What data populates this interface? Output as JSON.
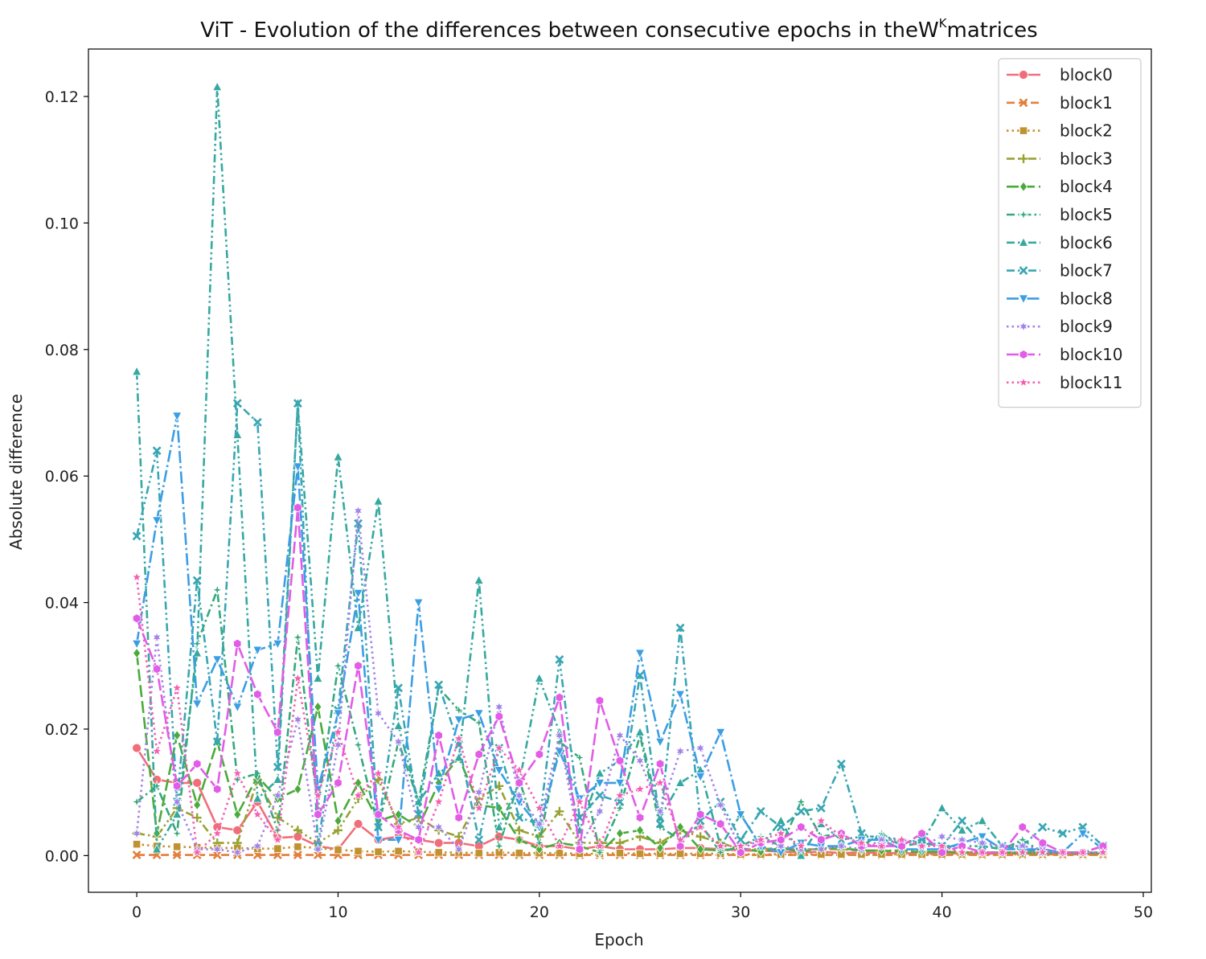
{
  "chart_data": {
    "type": "line",
    "title": "ViT - Evolution of the differences between consecutive epochs in the",
    "title_math_base": "W",
    "title_math_sup": "K",
    "title_suffix": "matrices",
    "xlabel": "Epoch",
    "ylabel": "Absolute difference",
    "xlim": [
      -2.4,
      50.4
    ],
    "ylim": [
      -0.0058,
      0.1275
    ],
    "xticks": [
      0,
      10,
      20,
      30,
      40,
      50
    ],
    "yticks": [
      0.0,
      0.02,
      0.04,
      0.06,
      0.08,
      0.1,
      0.12
    ],
    "xtick_labels": [
      "0",
      "10",
      "20",
      "30",
      "40",
      "50"
    ],
    "ytick_labels": [
      "0.00",
      "0.02",
      "0.04",
      "0.06",
      "0.08",
      "0.10",
      "0.12"
    ],
    "grid": false,
    "legend_position": "top-right",
    "x": [
      0,
      1,
      2,
      3,
      4,
      5,
      6,
      7,
      8,
      9,
      10,
      11,
      12,
      13,
      14,
      15,
      16,
      17,
      18,
      19,
      20,
      21,
      22,
      23,
      24,
      25,
      26,
      27,
      28,
      29,
      30,
      31,
      32,
      33,
      34,
      35,
      36,
      37,
      38,
      39,
      40,
      41,
      42,
      43,
      44,
      45,
      46,
      47,
      48
    ],
    "series": [
      {
        "name": "block0",
        "color": "#f16d7a",
        "dash": "solid",
        "marker": "circle",
        "values": [
          0.017,
          0.012,
          0.0115,
          0.0115,
          0.0045,
          0.004,
          0.0085,
          0.0028,
          0.003,
          0.0015,
          0.001,
          0.005,
          0.0025,
          0.003,
          0.0025,
          0.002,
          0.002,
          0.0015,
          0.003,
          0.0025,
          0.0015,
          0.0015,
          0.001,
          0.0015,
          0.001,
          0.001,
          0.001,
          0.0012,
          0.0012,
          0.001,
          0.0008,
          0.0008,
          0.0006,
          0.0005,
          0.0006,
          0.0004,
          0.0005,
          0.0004,
          0.0004,
          0.0003,
          0.0004,
          0.0003,
          0.0003,
          0.0003,
          0.0003,
          0.0002,
          0.0002,
          0.0002,
          0.0002
        ]
      },
      {
        "name": "block1",
        "color": "#e27f3c",
        "dash": "dash",
        "marker": "x",
        "values": [
          0.0001,
          0.0001,
          0.0001,
          0.0001,
          0.0001,
          0.0001,
          0.0001,
          0.0001,
          0.0001,
          0.0001,
          0.0001,
          0.0001,
          0.0001,
          0.0001,
          0.0001,
          0.0001,
          0.0001,
          0.0001,
          0.0001,
          0.0001,
          0.0001,
          0.0001,
          0.0001,
          0.0001,
          0.0001,
          0.0001,
          0.0001,
          0.0001,
          0.0001,
          0.0001,
          0.0001,
          0.0001,
          0.0001,
          0.0001,
          0.0001,
          0.0001,
          0.0001,
          0.0001,
          0.0001,
          0.0001,
          0.0001,
          0.0001,
          0.0001,
          0.0001,
          0.0001,
          0.0001,
          0.0001,
          0.0001,
          0.0001
        ]
      },
      {
        "name": "block2",
        "color": "#c09230",
        "dash": "dot",
        "marker": "square",
        "values": [
          0.0018,
          0.0015,
          0.0014,
          0.0013,
          0.0012,
          0.0012,
          0.0011,
          0.0011,
          0.0014,
          0.0012,
          0.0009,
          0.0007,
          0.0006,
          0.0007,
          0.0006,
          0.0005,
          0.0005,
          0.0004,
          0.0005,
          0.0004,
          0.0004,
          0.0004,
          0.0003,
          0.0003,
          0.0004,
          0.0003,
          0.0003,
          0.0003,
          0.0003,
          0.0003,
          0.0002,
          0.0002,
          0.0002,
          0.0002,
          0.0002,
          0.0002,
          0.0002,
          0.0002,
          0.0002,
          0.0002,
          0.0002,
          0.0002,
          0.0002,
          0.0002,
          0.0002,
          0.0002,
          0.0002,
          0.0002,
          0.0002
        ]
      },
      {
        "name": "block3",
        "color": "#98a234",
        "dash": "dashdotdot",
        "marker": "plus",
        "values": [
          0.0035,
          0.003,
          0.0075,
          0.006,
          0.002,
          0.002,
          0.012,
          0.006,
          0.004,
          0.002,
          0.004,
          0.009,
          0.012,
          0.005,
          0.006,
          0.004,
          0.003,
          0.009,
          0.011,
          0.004,
          0.003,
          0.007,
          0.002,
          0.002,
          0.002,
          0.003,
          0.002,
          0.004,
          0.003,
          0.002,
          0.001,
          0.001,
          0.0012,
          0.001,
          0.001,
          0.001,
          0.0008,
          0.0008,
          0.0008,
          0.0006,
          0.0006,
          0.0006,
          0.0005,
          0.0005,
          0.0005,
          0.0005,
          0.0004,
          0.0004,
          0.0004
        ]
      },
      {
        "name": "block4",
        "color": "#4aab3b",
        "dash": "longdash",
        "marker": "diamond",
        "values": [
          0.032,
          0.0035,
          0.019,
          0.008,
          0.018,
          0.0065,
          0.0125,
          0.009,
          0.0105,
          0.0235,
          0.0055,
          0.0115,
          0.0055,
          0.0065,
          0.0045,
          0.0115,
          0.0155,
          0.008,
          0.0075,
          0.0025,
          0.001,
          0.002,
          0.0015,
          0.0005,
          0.0035,
          0.004,
          0.0012,
          0.0045,
          0.001,
          0.0008,
          0.0012,
          0.0006,
          0.0012,
          0.0006,
          0.0012,
          0.0012,
          0.0008,
          0.0008,
          0.0006,
          0.0006,
          0.0006,
          0.0005,
          0.0005,
          0.0005,
          0.0004,
          0.0004,
          0.0004,
          0.0004,
          0.0004
        ]
      },
      {
        "name": "block5",
        "color": "#35a97c",
        "dash": "dashdot",
        "marker": "star4",
        "values": [
          0.0085,
          0.011,
          0.0035,
          0.0335,
          0.042,
          0.012,
          0.013,
          0.004,
          0.0345,
          0.0075,
          0.03,
          0.0175,
          0.0045,
          0.018,
          0.0085,
          0.0265,
          0.023,
          0.021,
          0.0015,
          0.012,
          0.002,
          0.018,
          0.0155,
          0.0005,
          0.0075,
          0.019,
          0.0045,
          0.0025,
          0.005,
          0.0005,
          0.0015,
          0.003,
          0.0015,
          0.0085,
          0.003,
          0.0035,
          0.0015,
          0.0035,
          0.0015,
          0.002,
          0.0015,
          0.0015,
          0.0015,
          0.001,
          0.0025,
          0.0005,
          0.0005,
          0.0005,
          0.0005
        ]
      },
      {
        "name": "block6",
        "color": "#35a9a0",
        "dash": "dashdotdot",
        "marker": "triangle-up",
        "values": [
          0.0765,
          0.001,
          0.0065,
          0.032,
          0.1215,
          0.0665,
          0.009,
          0.012,
          0.0715,
          0.028,
          0.063,
          0.036,
          0.056,
          0.0205,
          0.0085,
          0.013,
          0.0155,
          0.0435,
          0.0045,
          0.0115,
          0.028,
          0.0195,
          0.004,
          0.013,
          0.015,
          0.0195,
          0.006,
          0.0115,
          0.0135,
          0.0015,
          0.0065,
          0.0015,
          0.0055,
          0.0,
          0.005,
          0.0025,
          0.003,
          0.003,
          0.0025,
          0.002,
          0.0075,
          0.004,
          0.0055,
          0.0015,
          0.001,
          0.0005,
          0.0005,
          0.0005,
          0.0015
        ]
      },
      {
        "name": "block7",
        "color": "#38a6b4",
        "dash": "dashdotdot",
        "marker": "x",
        "values": [
          0.0505,
          0.064,
          0.0085,
          0.0435,
          0.018,
          0.0715,
          0.0685,
          0.014,
          0.0715,
          0.0015,
          0.023,
          0.0525,
          0.0045,
          0.0265,
          0.0065,
          0.027,
          0.0175,
          0.0025,
          0.017,
          0.006,
          0.005,
          0.031,
          0.006,
          0.0095,
          0.0085,
          0.0285,
          0.005,
          0.036,
          0.0055,
          0.0085,
          0.0025,
          0.007,
          0.0045,
          0.007,
          0.0075,
          0.0145,
          0.0035,
          0.0025,
          0.002,
          0.0025,
          0.0015,
          0.0055,
          0.0015,
          0.0015,
          0.0015,
          0.0045,
          0.0035,
          0.0045,
          0.0015
        ]
      },
      {
        "name": "block8",
        "color": "#3b9ee4",
        "dash": "longdashdot",
        "marker": "triangle-down",
        "values": [
          0.0335,
          0.053,
          0.0695,
          0.024,
          0.031,
          0.0235,
          0.0325,
          0.0335,
          0.0615,
          0.0105,
          0.0225,
          0.0415,
          0.0025,
          0.0025,
          0.04,
          0.0105,
          0.0215,
          0.0225,
          0.0135,
          0.0085,
          0.0045,
          0.0165,
          0.009,
          0.0115,
          0.0115,
          0.032,
          0.018,
          0.0255,
          0.0125,
          0.0195,
          0.0065,
          0.0015,
          0.0005,
          0.002,
          0.0015,
          0.0015,
          0.0025,
          0.0025,
          0.001,
          0.001,
          0.001,
          0.002,
          0.003,
          0.001,
          0.001,
          0.001,
          0.0005,
          0.0035,
          0.001
        ]
      },
      {
        "name": "block9",
        "color": "#a283e9",
        "dash": "dot",
        "marker": "star6",
        "values": [
          0.0035,
          0.0345,
          0.0085,
          0.001,
          0.001,
          0.0005,
          0.0015,
          0.0095,
          0.0215,
          0.001,
          0.0175,
          0.0545,
          0.0225,
          0.018,
          0.0045,
          0.0045,
          0.001,
          0.01,
          0.0235,
          0.0095,
          0.005,
          0.019,
          0.0015,
          0.007,
          0.019,
          0.015,
          0.007,
          0.0165,
          0.017,
          0.008,
          0.001,
          0.0025,
          0.0015,
          0.001,
          0.001,
          0.0015,
          0.001,
          0.0025,
          0.0025,
          0.0015,
          0.003,
          0.0025,
          0.002,
          0.0015,
          0.0015,
          0.001,
          0.0005,
          0.0005,
          0.0005
        ]
      },
      {
        "name": "block10",
        "color": "#e25ce7",
        "dash": "longdash",
        "marker": "hexagon",
        "values": [
          0.0375,
          0.0295,
          0.011,
          0.0145,
          0.0105,
          0.0335,
          0.0255,
          0.0195,
          0.055,
          0.0065,
          0.0115,
          0.03,
          0.0065,
          0.004,
          0.0025,
          0.019,
          0.006,
          0.016,
          0.022,
          0.0115,
          0.016,
          0.025,
          0.001,
          0.0245,
          0.015,
          0.006,
          0.0145,
          0.0015,
          0.0065,
          0.005,
          0.0005,
          0.002,
          0.0025,
          0.0045,
          0.0025,
          0.0035,
          0.0015,
          0.0015,
          0.0015,
          0.0035,
          0.0005,
          0.0015,
          0.0005,
          0.0005,
          0.0045,
          0.002,
          0.0005,
          0.0005,
          0.0015
        ]
      },
      {
        "name": "block11",
        "color": "#f45fb3",
        "dash": "dot",
        "marker": "star5",
        "values": [
          0.044,
          0.0165,
          0.0265,
          0.0005,
          0.0035,
          0.013,
          0.0065,
          0.0025,
          0.028,
          0.0095,
          0.0195,
          0.0095,
          0.013,
          0.0045,
          0.0005,
          0.0085,
          0.0185,
          0.0075,
          0.017,
          0.0135,
          0.0075,
          0.0015,
          0.0085,
          0.0015,
          0.0095,
          0.0105,
          0.0115,
          0.0025,
          0.0045,
          0.0015,
          0.0015,
          0.0025,
          0.0035,
          0.0015,
          0.0055,
          0.003,
          0.002,
          0.0015,
          0.0025,
          0.0015,
          0.0015,
          0.0005,
          0.0005,
          0.0005,
          0.0005,
          0.0005,
          0.0005,
          0.0005,
          0.0005
        ]
      }
    ]
  }
}
